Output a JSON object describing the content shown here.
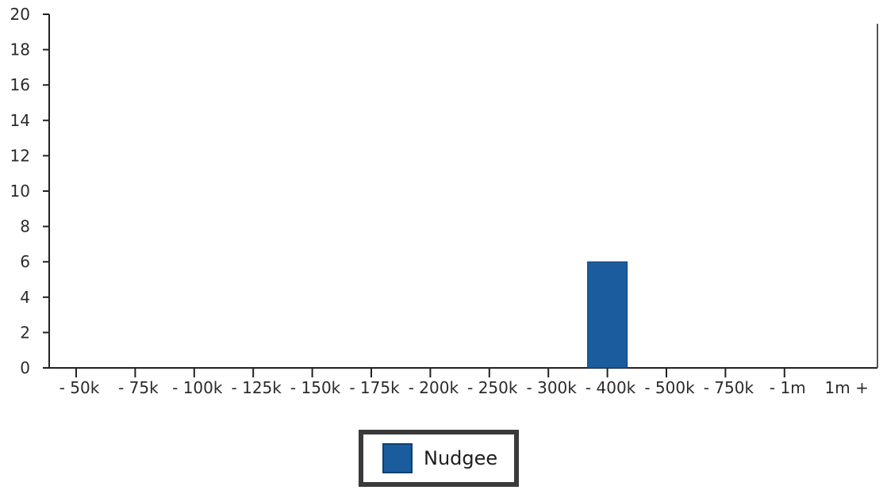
{
  "chart_data": {
    "type": "bar",
    "categories": [
      "- 50k",
      "- 75k",
      "- 100k",
      "- 125k",
      "- 150k",
      "- 175k",
      "- 200k",
      "- 250k",
      "- 300k",
      "- 400k",
      "- 500k",
      "- 750k",
      "- 1m",
      "1m +"
    ],
    "series": [
      {
        "name": "Nudgee",
        "values": [
          0,
          0,
          0,
          0,
          0,
          0,
          0,
          0,
          0,
          6,
          0,
          0,
          0,
          0
        ],
        "color": "#1a5c9e"
      }
    ],
    "ylim": [
      0,
      20
    ],
    "yticks": [
      0,
      2,
      4,
      6,
      8,
      10,
      12,
      14,
      16,
      18,
      20
    ],
    "grid": false,
    "legend": "bottom-center",
    "xlabel": "",
    "ylabel": ""
  }
}
